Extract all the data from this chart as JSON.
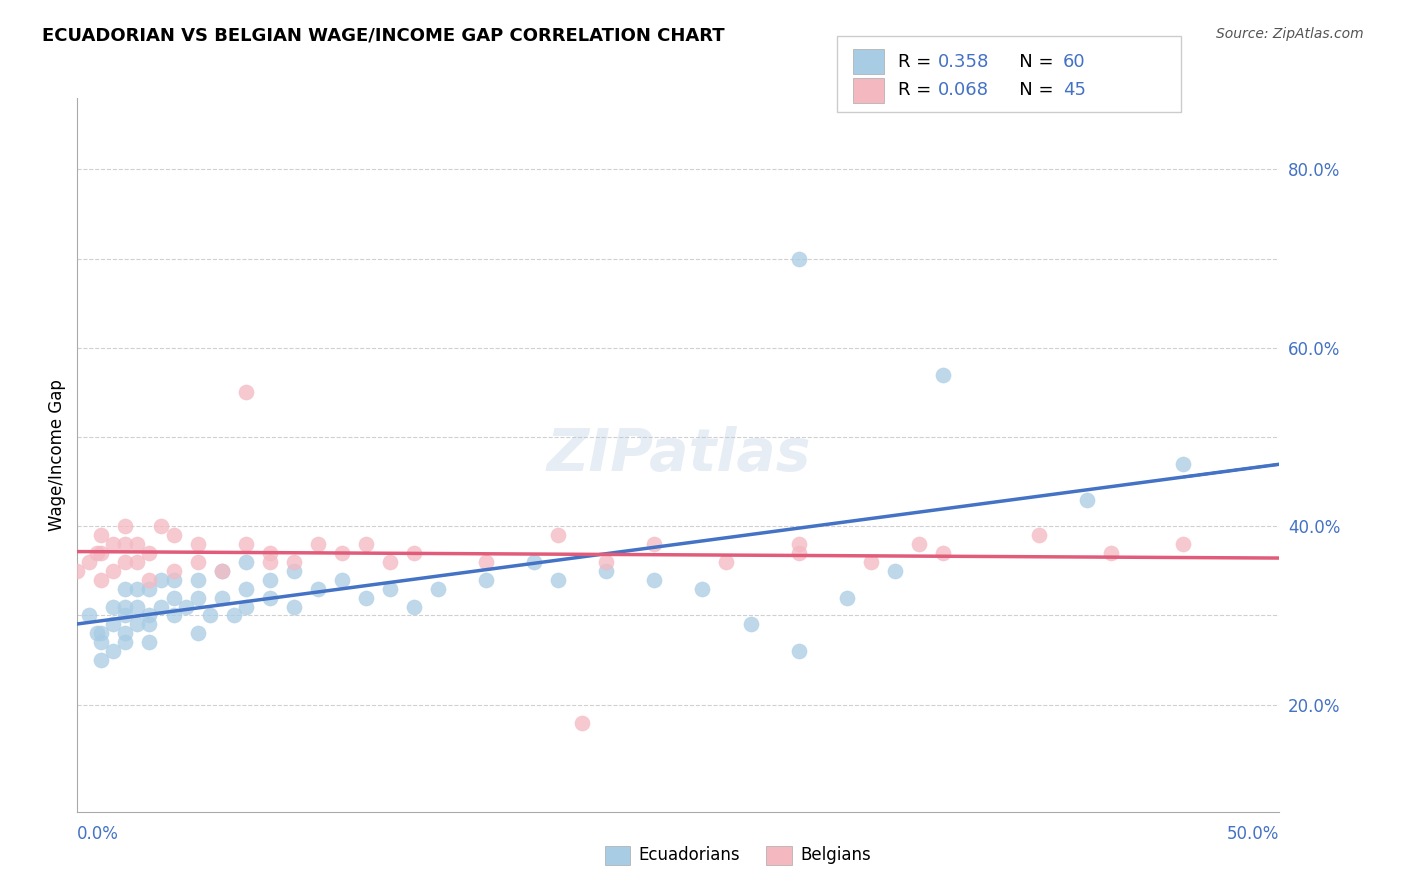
{
  "title": "ECUADORIAN VS BELGIAN WAGE/INCOME GAP CORRELATION CHART",
  "source": "Source: ZipAtlas.com",
  "ylabel": "Wage/Income Gap",
  "y_ticks": [
    0.2,
    0.3,
    0.4,
    0.5,
    0.6,
    0.7,
    0.8
  ],
  "y_tick_labels": [
    "20.0%",
    "",
    "40.0%",
    "",
    "60.0%",
    "",
    "80.0%"
  ],
  "xlim": [
    0.0,
    0.5
  ],
  "ylim": [
    0.08,
    0.88
  ],
  "legend_r1": "R = 0.358",
  "legend_n1": "N = 60",
  "legend_r2": "R = 0.068",
  "legend_n2": "N = 45",
  "color_ecuadorian": "#a8cce4",
  "color_belgian": "#f4b8c1",
  "color_trendline_ecu": "#4472c4",
  "color_trendline_bel": "#e05c7a",
  "watermark": "ZIPatlas",
  "ecuadorian_scatter_x": [
    0.005,
    0.008,
    0.01,
    0.01,
    0.01,
    0.015,
    0.015,
    0.015,
    0.02,
    0.02,
    0.02,
    0.02,
    0.02,
    0.025,
    0.025,
    0.025,
    0.03,
    0.03,
    0.03,
    0.03,
    0.035,
    0.035,
    0.04,
    0.04,
    0.04,
    0.045,
    0.05,
    0.05,
    0.05,
    0.055,
    0.06,
    0.06,
    0.065,
    0.07,
    0.07,
    0.07,
    0.08,
    0.08,
    0.09,
    0.09,
    0.1,
    0.11,
    0.12,
    0.13,
    0.14,
    0.15,
    0.17,
    0.19,
    0.2,
    0.22,
    0.24,
    0.26,
    0.28,
    0.3,
    0.32,
    0.34,
    0.36,
    0.3,
    0.42,
    0.46
  ],
  "ecuadorian_scatter_y": [
    0.3,
    0.28,
    0.28,
    0.25,
    0.27,
    0.26,
    0.29,
    0.31,
    0.27,
    0.28,
    0.3,
    0.31,
    0.33,
    0.29,
    0.31,
    0.33,
    0.3,
    0.27,
    0.29,
    0.33,
    0.31,
    0.34,
    0.3,
    0.32,
    0.34,
    0.31,
    0.28,
    0.32,
    0.34,
    0.3,
    0.32,
    0.35,
    0.3,
    0.31,
    0.33,
    0.36,
    0.32,
    0.34,
    0.31,
    0.35,
    0.33,
    0.34,
    0.32,
    0.33,
    0.31,
    0.33,
    0.34,
    0.36,
    0.34,
    0.35,
    0.34,
    0.33,
    0.29,
    0.26,
    0.32,
    0.35,
    0.57,
    0.7,
    0.43,
    0.47
  ],
  "belgian_scatter_x": [
    0.0,
    0.005,
    0.008,
    0.01,
    0.01,
    0.01,
    0.015,
    0.015,
    0.02,
    0.02,
    0.02,
    0.025,
    0.025,
    0.03,
    0.03,
    0.035,
    0.04,
    0.04,
    0.05,
    0.05,
    0.06,
    0.07,
    0.07,
    0.08,
    0.09,
    0.1,
    0.11,
    0.12,
    0.13,
    0.14,
    0.17,
    0.2,
    0.22,
    0.24,
    0.27,
    0.3,
    0.33,
    0.35,
    0.4,
    0.43,
    0.46,
    0.21,
    0.08,
    0.36,
    0.3
  ],
  "belgian_scatter_y": [
    0.35,
    0.36,
    0.37,
    0.34,
    0.37,
    0.39,
    0.35,
    0.38,
    0.36,
    0.38,
    0.4,
    0.36,
    0.38,
    0.34,
    0.37,
    0.4,
    0.35,
    0.39,
    0.36,
    0.38,
    0.35,
    0.55,
    0.38,
    0.37,
    0.36,
    0.38,
    0.37,
    0.38,
    0.36,
    0.37,
    0.36,
    0.39,
    0.36,
    0.38,
    0.36,
    0.37,
    0.36,
    0.38,
    0.39,
    0.37,
    0.38,
    0.18,
    0.36,
    0.37,
    0.38
  ]
}
